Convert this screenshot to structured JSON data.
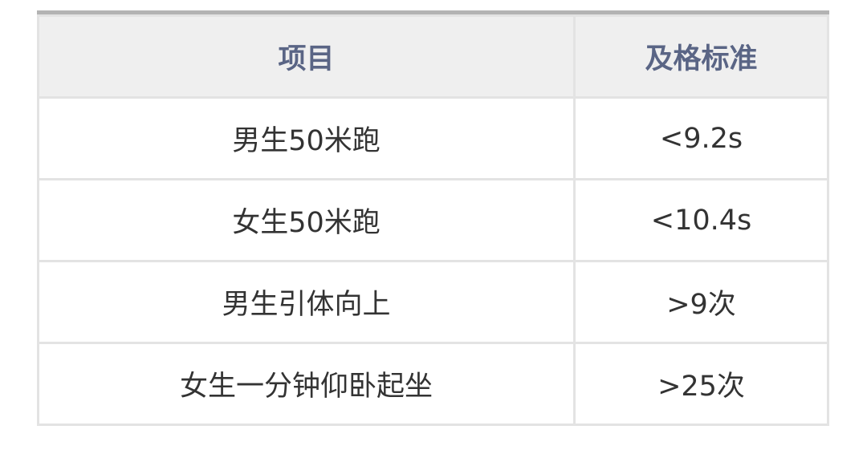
{
  "table": {
    "headers": [
      "项目",
      "及格标准"
    ],
    "rows": [
      [
        "男生50米跑",
        "<9.2s"
      ],
      [
        "女生50米跑",
        "<10.4s"
      ],
      [
        "男生引体向上",
        ">9次"
      ],
      [
        "女生一分钟仰卧起坐",
        ">25次"
      ]
    ]
  },
  "colors": {
    "header_text": "#5a6585",
    "header_bg": "#efefef",
    "body_text": "#333333"
  }
}
